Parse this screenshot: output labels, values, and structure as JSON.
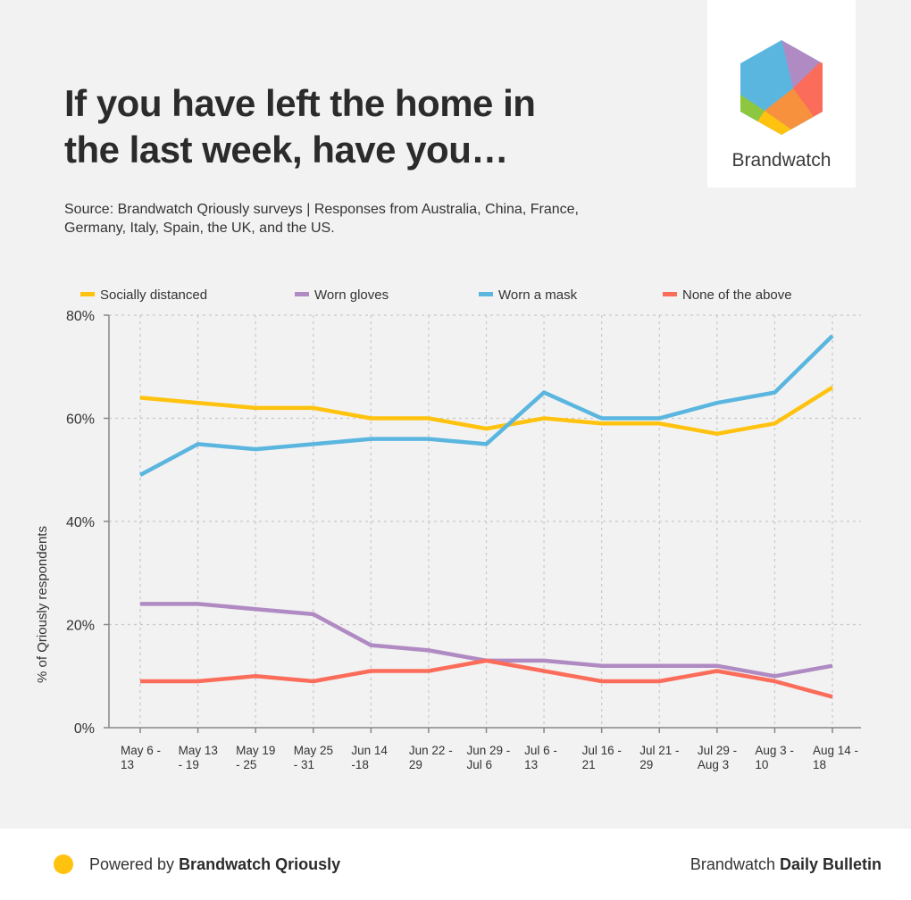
{
  "title_lines": [
    "If you have left the home in",
    "the last week, have you…"
  ],
  "source": "Source: Brandwatch Qriously surveys | Responses from Australia, China, France, Germany, Italy, Spain, the UK, and the US.",
  "logo_text": "Brandwatch",
  "footer": {
    "powered_prefix": "Powered by ",
    "powered_brand": "Brandwatch Qriously",
    "bulletin_prefix": "Brandwatch ",
    "bulletin_name": "Daily Bulletin"
  },
  "colors": {
    "accent_yellow": "#ffc20e",
    "socially_distanced": "#ffc20e",
    "worn_gloves": "#b08ac3",
    "worn_a_mask": "#5bb6df",
    "none_of_the_above": "#fb6d5a"
  },
  "chart_data": {
    "type": "line",
    "ylabel": "% of Qriously respondents",
    "xlabel": "",
    "ylim": [
      0,
      80
    ],
    "yticks": [
      "0%",
      "20%",
      "40%",
      "60%",
      "80%"
    ],
    "ytick_values": [
      0,
      20,
      40,
      60,
      80
    ],
    "grid": true,
    "legend_position": "top",
    "categories": [
      [
        "May 6 -",
        "13"
      ],
      [
        "May 13",
        "- 19"
      ],
      [
        "May 19",
        "- 25"
      ],
      [
        "May 25",
        "- 31"
      ],
      [
        "Jun 14",
        "-18"
      ],
      [
        "Jun 22 -",
        "29"
      ],
      [
        "Jun 29 -",
        "Jul 6"
      ],
      [
        "Jul 6 -",
        "13"
      ],
      [
        "Jul 16 -",
        "21"
      ],
      [
        "Jul 21 -",
        "29"
      ],
      [
        "Jul 29 -",
        "Aug 3"
      ],
      [
        "Aug 3 -",
        "10"
      ],
      [
        "Aug 14 -",
        "18"
      ]
    ],
    "series": [
      {
        "name": "Socially distanced",
        "color": "#ffc20e",
        "values": [
          64,
          63,
          62,
          62,
          60,
          60,
          58,
          60,
          59,
          59,
          57,
          59,
          66
        ]
      },
      {
        "name": "Worn gloves",
        "color": "#b08ac3",
        "values": [
          24,
          24,
          23,
          22,
          16,
          15,
          13,
          13,
          12,
          12,
          12,
          10,
          12
        ]
      },
      {
        "name": "Worn a mask",
        "color": "#5bb6df",
        "values": [
          49,
          55,
          54,
          55,
          56,
          56,
          55,
          65,
          60,
          60,
          63,
          65,
          76
        ]
      },
      {
        "name": "None of the above",
        "color": "#fb6d5a",
        "values": [
          9,
          9,
          10,
          9,
          11,
          11,
          13,
          11,
          9,
          9,
          11,
          9,
          6
        ]
      }
    ]
  }
}
